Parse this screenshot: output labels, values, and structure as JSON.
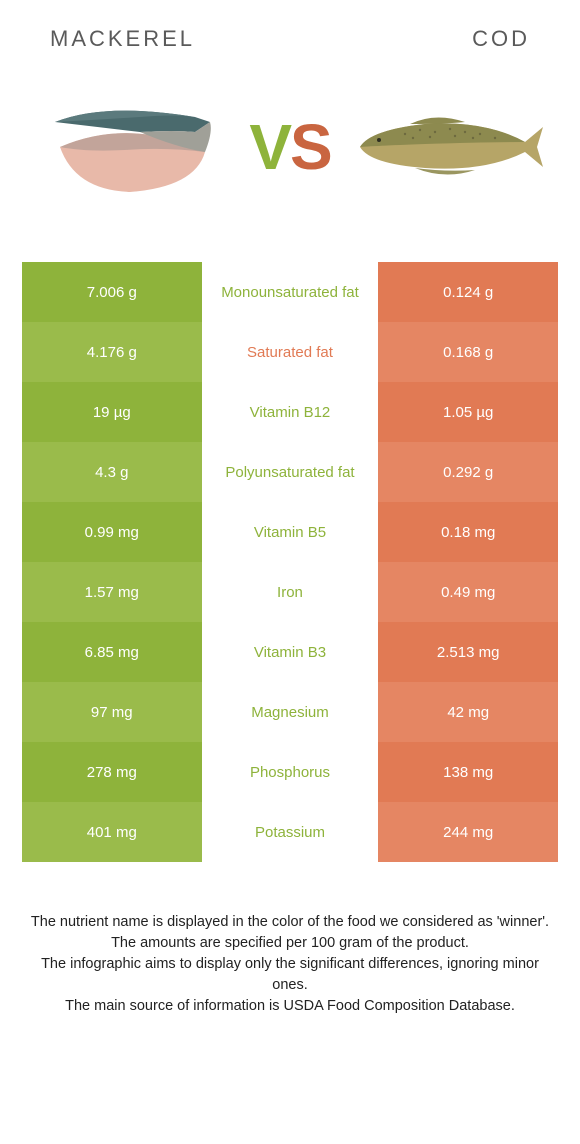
{
  "colors": {
    "left_a": "#8eb33b",
    "left_b": "#9abb4b",
    "right_a": "#e17a54",
    "right_b": "#e58663",
    "mid_bg": "#ffffff",
    "row_sep": "#ffffff",
    "winner_left": "#8eb33b",
    "winner_right": "#e17a54",
    "header_text": "#5a5a5a",
    "footer_text": "#222222",
    "vs_v": "#8eb33b",
    "vs_s": "#c96540"
  },
  "left_title": "MACKEREL",
  "right_title": "COD",
  "vs_v": "V",
  "vs_s": "S",
  "rows": [
    {
      "left": "7.006 g",
      "mid": "Monounsaturated fat",
      "right": "0.124 g",
      "winner": "left"
    },
    {
      "left": "4.176 g",
      "mid": "Saturated fat",
      "right": "0.168 g",
      "winner": "right"
    },
    {
      "left": "19 µg",
      "mid": "Vitamin B12",
      "right": "1.05 µg",
      "winner": "left"
    },
    {
      "left": "4.3 g",
      "mid": "Polyunsaturated fat",
      "right": "0.292 g",
      "winner": "left"
    },
    {
      "left": "0.99 mg",
      "mid": "Vitamin B5",
      "right": "0.18 mg",
      "winner": "left"
    },
    {
      "left": "1.57 mg",
      "mid": "Iron",
      "right": "0.49 mg",
      "winner": "left"
    },
    {
      "left": "6.85 mg",
      "mid": "Vitamin B3",
      "right": "2.513 mg",
      "winner": "left"
    },
    {
      "left": "97 mg",
      "mid": "Magnesium",
      "right": "42 mg",
      "winner": "left"
    },
    {
      "left": "278 mg",
      "mid": "Phosphorus",
      "right": "138 mg",
      "winner": "left"
    },
    {
      "left": "401 mg",
      "mid": "Potassium",
      "right": "244 mg",
      "winner": "left"
    }
  ],
  "footer": [
    "The nutrient name is displayed in the color of the food we considered as 'winner'.",
    "The amounts are specified per 100 gram of the product.",
    "The infographic aims to display only the significant differences, ignoring minor ones.",
    "The main source of information is USDA Food Composition Database."
  ]
}
